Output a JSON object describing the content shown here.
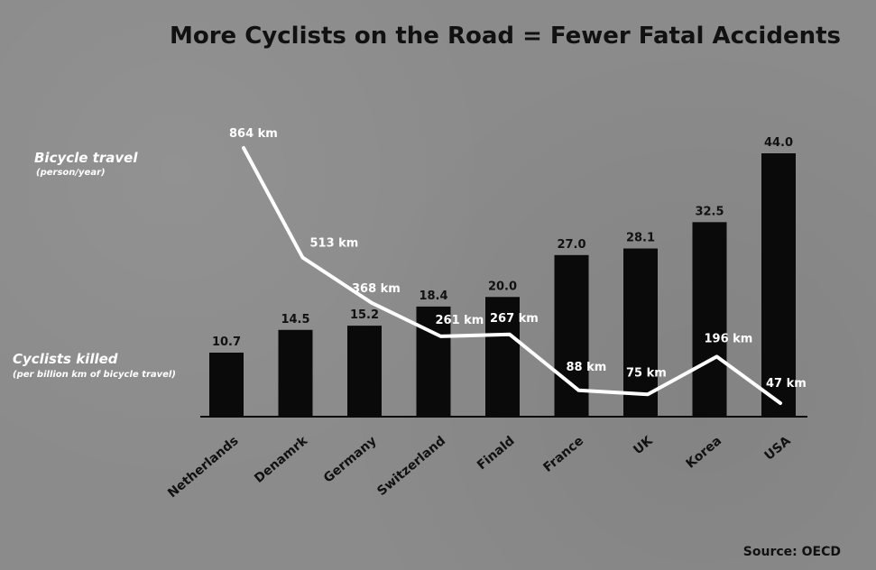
{
  "chart_data": {
    "type": "bar",
    "title": "More Cyclists on the Road = Fewer Fatal Accidents",
    "categories": [
      "Netherlands",
      "Denamrk",
      "Germany",
      "Switzerland",
      "Finald",
      "France",
      "UK",
      "Korea",
      "USA"
    ],
    "series": [
      {
        "name": "Cyclists killed",
        "subtitle": "(per billion km of bicycle travel)",
        "type": "bar",
        "values": [
          10.7,
          14.5,
          15.2,
          18.4,
          20.0,
          27.0,
          28.1,
          32.5,
          44.0
        ],
        "labels": [
          "10.7",
          "14.5",
          "15.2",
          "18.4",
          "20.0",
          "27.0",
          "28.1",
          "32.5",
          "44.0"
        ],
        "color": "#0a0a0a"
      },
      {
        "name": "Bicycle travel",
        "subtitle": "(person/year)",
        "type": "line",
        "values": [
          864,
          513,
          368,
          261,
          267,
          88,
          75,
          196,
          47
        ],
        "labels": [
          "864 km",
          "513 km",
          "368 km",
          "261 km",
          "267 km",
          "88 km",
          "75 km",
          "196 km",
          "47 km"
        ],
        "color": "#ffffff"
      }
    ],
    "source": "Source: OECD"
  }
}
